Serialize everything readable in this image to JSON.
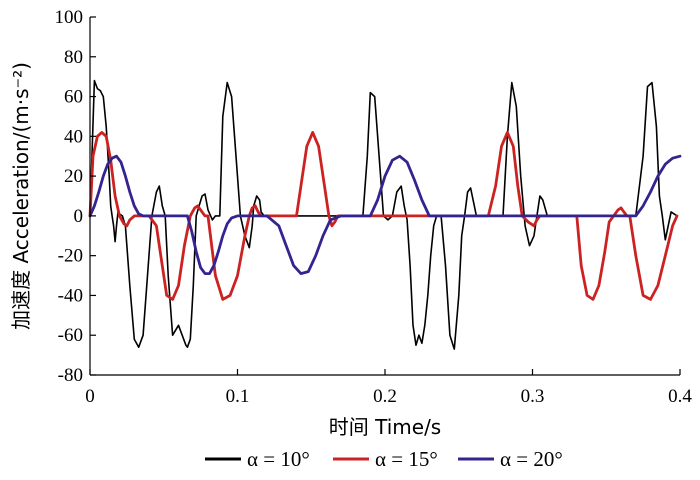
{
  "chart_data": {
    "type": "line",
    "title": "",
    "xlabel": "时间 Time/s",
    "ylabel": "加速度 Acceleration/(m·s⁻²)",
    "xlim": [
      0,
      0.4
    ],
    "ylim": [
      -80,
      100
    ],
    "xticks": [
      "0",
      "0.1",
      "0.2",
      "0.3",
      "0.4"
    ],
    "yticks": [
      "100",
      "80",
      "60",
      "40",
      "20",
      "0",
      "-20",
      "-40",
      "-60",
      "-80"
    ],
    "grid": false,
    "legend_position": "bottom",
    "series": [
      {
        "name": "α = 10°",
        "color": "#000000",
        "x": [
          0,
          0.003,
          0.005,
          0.007,
          0.009,
          0.011,
          0.013,
          0.014,
          0.015,
          0.016,
          0.017,
          0.018,
          0.019,
          0.02,
          0.022,
          0.024,
          0.027,
          0.03,
          0.033,
          0.036,
          0.039,
          0.042,
          0.045,
          0.047,
          0.049,
          0.051,
          0.053,
          0.056,
          0.06,
          0.065,
          0.066,
          0.068,
          0.07,
          0.072,
          0.074,
          0.076,
          0.078,
          0.08,
          0.083,
          0.085,
          0.088,
          0.09,
          0.093,
          0.096,
          0.099,
          0.102,
          0.105,
          0.108,
          0.11,
          0.111,
          0.113,
          0.115,
          0.116,
          0.118,
          0.12,
          0.125,
          0.14,
          0.17,
          0.185,
          0.188,
          0.19,
          0.193,
          0.196,
          0.199,
          0.202,
          0.205,
          0.208,
          0.211,
          0.213,
          0.215,
          0.217,
          0.219,
          0.221,
          0.223,
          0.225,
          0.227,
          0.229,
          0.231,
          0.233,
          0.235,
          0.238,
          0.241,
          0.244,
          0.247,
          0.25,
          0.252,
          0.254,
          0.256,
          0.258,
          0.262,
          0.27,
          0.28,
          0.283,
          0.286,
          0.289,
          0.292,
          0.295,
          0.298,
          0.301,
          0.303,
          0.305,
          0.307,
          0.31,
          0.32,
          0.35,
          0.37,
          0.375,
          0.378,
          0.381,
          0.384,
          0.386,
          0.388,
          0.39,
          0.392,
          0.394,
          0.396,
          0.398
        ],
        "y": [
          0,
          68,
          64,
          63,
          60,
          45,
          20,
          5,
          0,
          -5,
          -13,
          -5,
          2,
          1,
          0,
          -5,
          -35,
          -62,
          -66,
          -60,
          -30,
          0,
          12,
          15,
          5,
          0,
          -30,
          -60,
          -55,
          -65,
          -66,
          -62,
          -35,
          0,
          5,
          10,
          11,
          3,
          -2,
          0,
          0,
          50,
          67,
          60,
          30,
          0,
          -10,
          -16,
          -5,
          5,
          10,
          8,
          2,
          0,
          0,
          0,
          0,
          0,
          0,
          30,
          62,
          60,
          30,
          0,
          -2,
          0,
          12,
          15,
          5,
          -2,
          -25,
          -55,
          -65,
          -60,
          -64,
          -55,
          -40,
          -20,
          -5,
          0,
          0,
          -25,
          -60,
          -67,
          -40,
          -10,
          0,
          12,
          14,
          0,
          0,
          0,
          40,
          67,
          55,
          20,
          -5,
          -15,
          -10,
          0,
          10,
          8,
          0,
          0,
          0,
          0,
          30,
          65,
          67,
          45,
          10,
          0,
          -12,
          -5,
          2,
          1,
          0
        ]
      },
      {
        "name": "α = 15°",
        "color": "#cc2222",
        "x": [
          0,
          0.002,
          0.005,
          0.008,
          0.011,
          0.014,
          0.017,
          0.02,
          0.023,
          0.025,
          0.027,
          0.03,
          0.035,
          0.04,
          0.045,
          0.048,
          0.052,
          0.056,
          0.06,
          0.064,
          0.068,
          0.071,
          0.073,
          0.075,
          0.078,
          0.08,
          0.085,
          0.09,
          0.095,
          0.1,
          0.105,
          0.108,
          0.11,
          0.112,
          0.114,
          0.116,
          0.118,
          0.12,
          0.13,
          0.14,
          0.143,
          0.147,
          0.151,
          0.155,
          0.159,
          0.162,
          0.164,
          0.166,
          0.168,
          0.17,
          0.2,
          0.26,
          0.27,
          0.275,
          0.279,
          0.283,
          0.287,
          0.29,
          0.293,
          0.297,
          0.301,
          0.303,
          0.305,
          0.307,
          0.31,
          0.33,
          0.333,
          0.337,
          0.341,
          0.345,
          0.349,
          0.352,
          0.355,
          0.358,
          0.36,
          0.362,
          0.364,
          0.366,
          0.37,
          0.375,
          0.38,
          0.385,
          0.39,
          0.395,
          0.398
        ],
        "y": [
          0,
          30,
          40,
          42,
          40,
          28,
          10,
          0,
          -4,
          -5,
          -2,
          0,
          0,
          0,
          -5,
          -20,
          -40,
          -42,
          -35,
          -15,
          0,
          4,
          5,
          3,
          0,
          0,
          -30,
          -42,
          -40,
          -30,
          -10,
          0,
          4,
          5,
          2,
          0,
          0,
          0,
          0,
          0,
          15,
          35,
          42,
          35,
          15,
          0,
          -5,
          -3,
          0,
          0,
          0,
          0,
          0,
          15,
          35,
          42,
          35,
          15,
          0,
          -3,
          -5,
          -2,
          0,
          0,
          0,
          0,
          -25,
          -40,
          -42,
          -35,
          -18,
          -3,
          0,
          3,
          4,
          2,
          0,
          0,
          -20,
          -40,
          -42,
          -35,
          -20,
          -5,
          0
        ]
      },
      {
        "name": "α = 20°",
        "color": "#33248f",
        "x": [
          0,
          0.003,
          0.006,
          0.009,
          0.012,
          0.015,
          0.018,
          0.021,
          0.024,
          0.027,
          0.03,
          0.033,
          0.036,
          0.04,
          0.06,
          0.066,
          0.069,
          0.072,
          0.075,
          0.078,
          0.081,
          0.084,
          0.087,
          0.09,
          0.093,
          0.096,
          0.1,
          0.12,
          0.128,
          0.133,
          0.138,
          0.143,
          0.148,
          0.153,
          0.158,
          0.163,
          0.17,
          0.19,
          0.195,
          0.2,
          0.205,
          0.21,
          0.215,
          0.22,
          0.225,
          0.23,
          0.24,
          0.3,
          0.37,
          0.375,
          0.38,
          0.385,
          0.39,
          0.395,
          0.4
        ],
        "y": [
          0,
          5,
          12,
          20,
          26,
          29,
          30,
          27,
          20,
          12,
          5,
          1,
          0,
          0,
          0,
          0,
          -8,
          -18,
          -26,
          -29,
          -29,
          -25,
          -18,
          -10,
          -4,
          -1,
          0,
          0,
          -5,
          -15,
          -25,
          -29,
          -28,
          -20,
          -10,
          -2,
          0,
          0,
          8,
          20,
          28,
          30,
          27,
          18,
          8,
          0,
          0,
          0,
          0,
          5,
          12,
          20,
          26,
          29,
          30
        ]
      }
    ]
  }
}
